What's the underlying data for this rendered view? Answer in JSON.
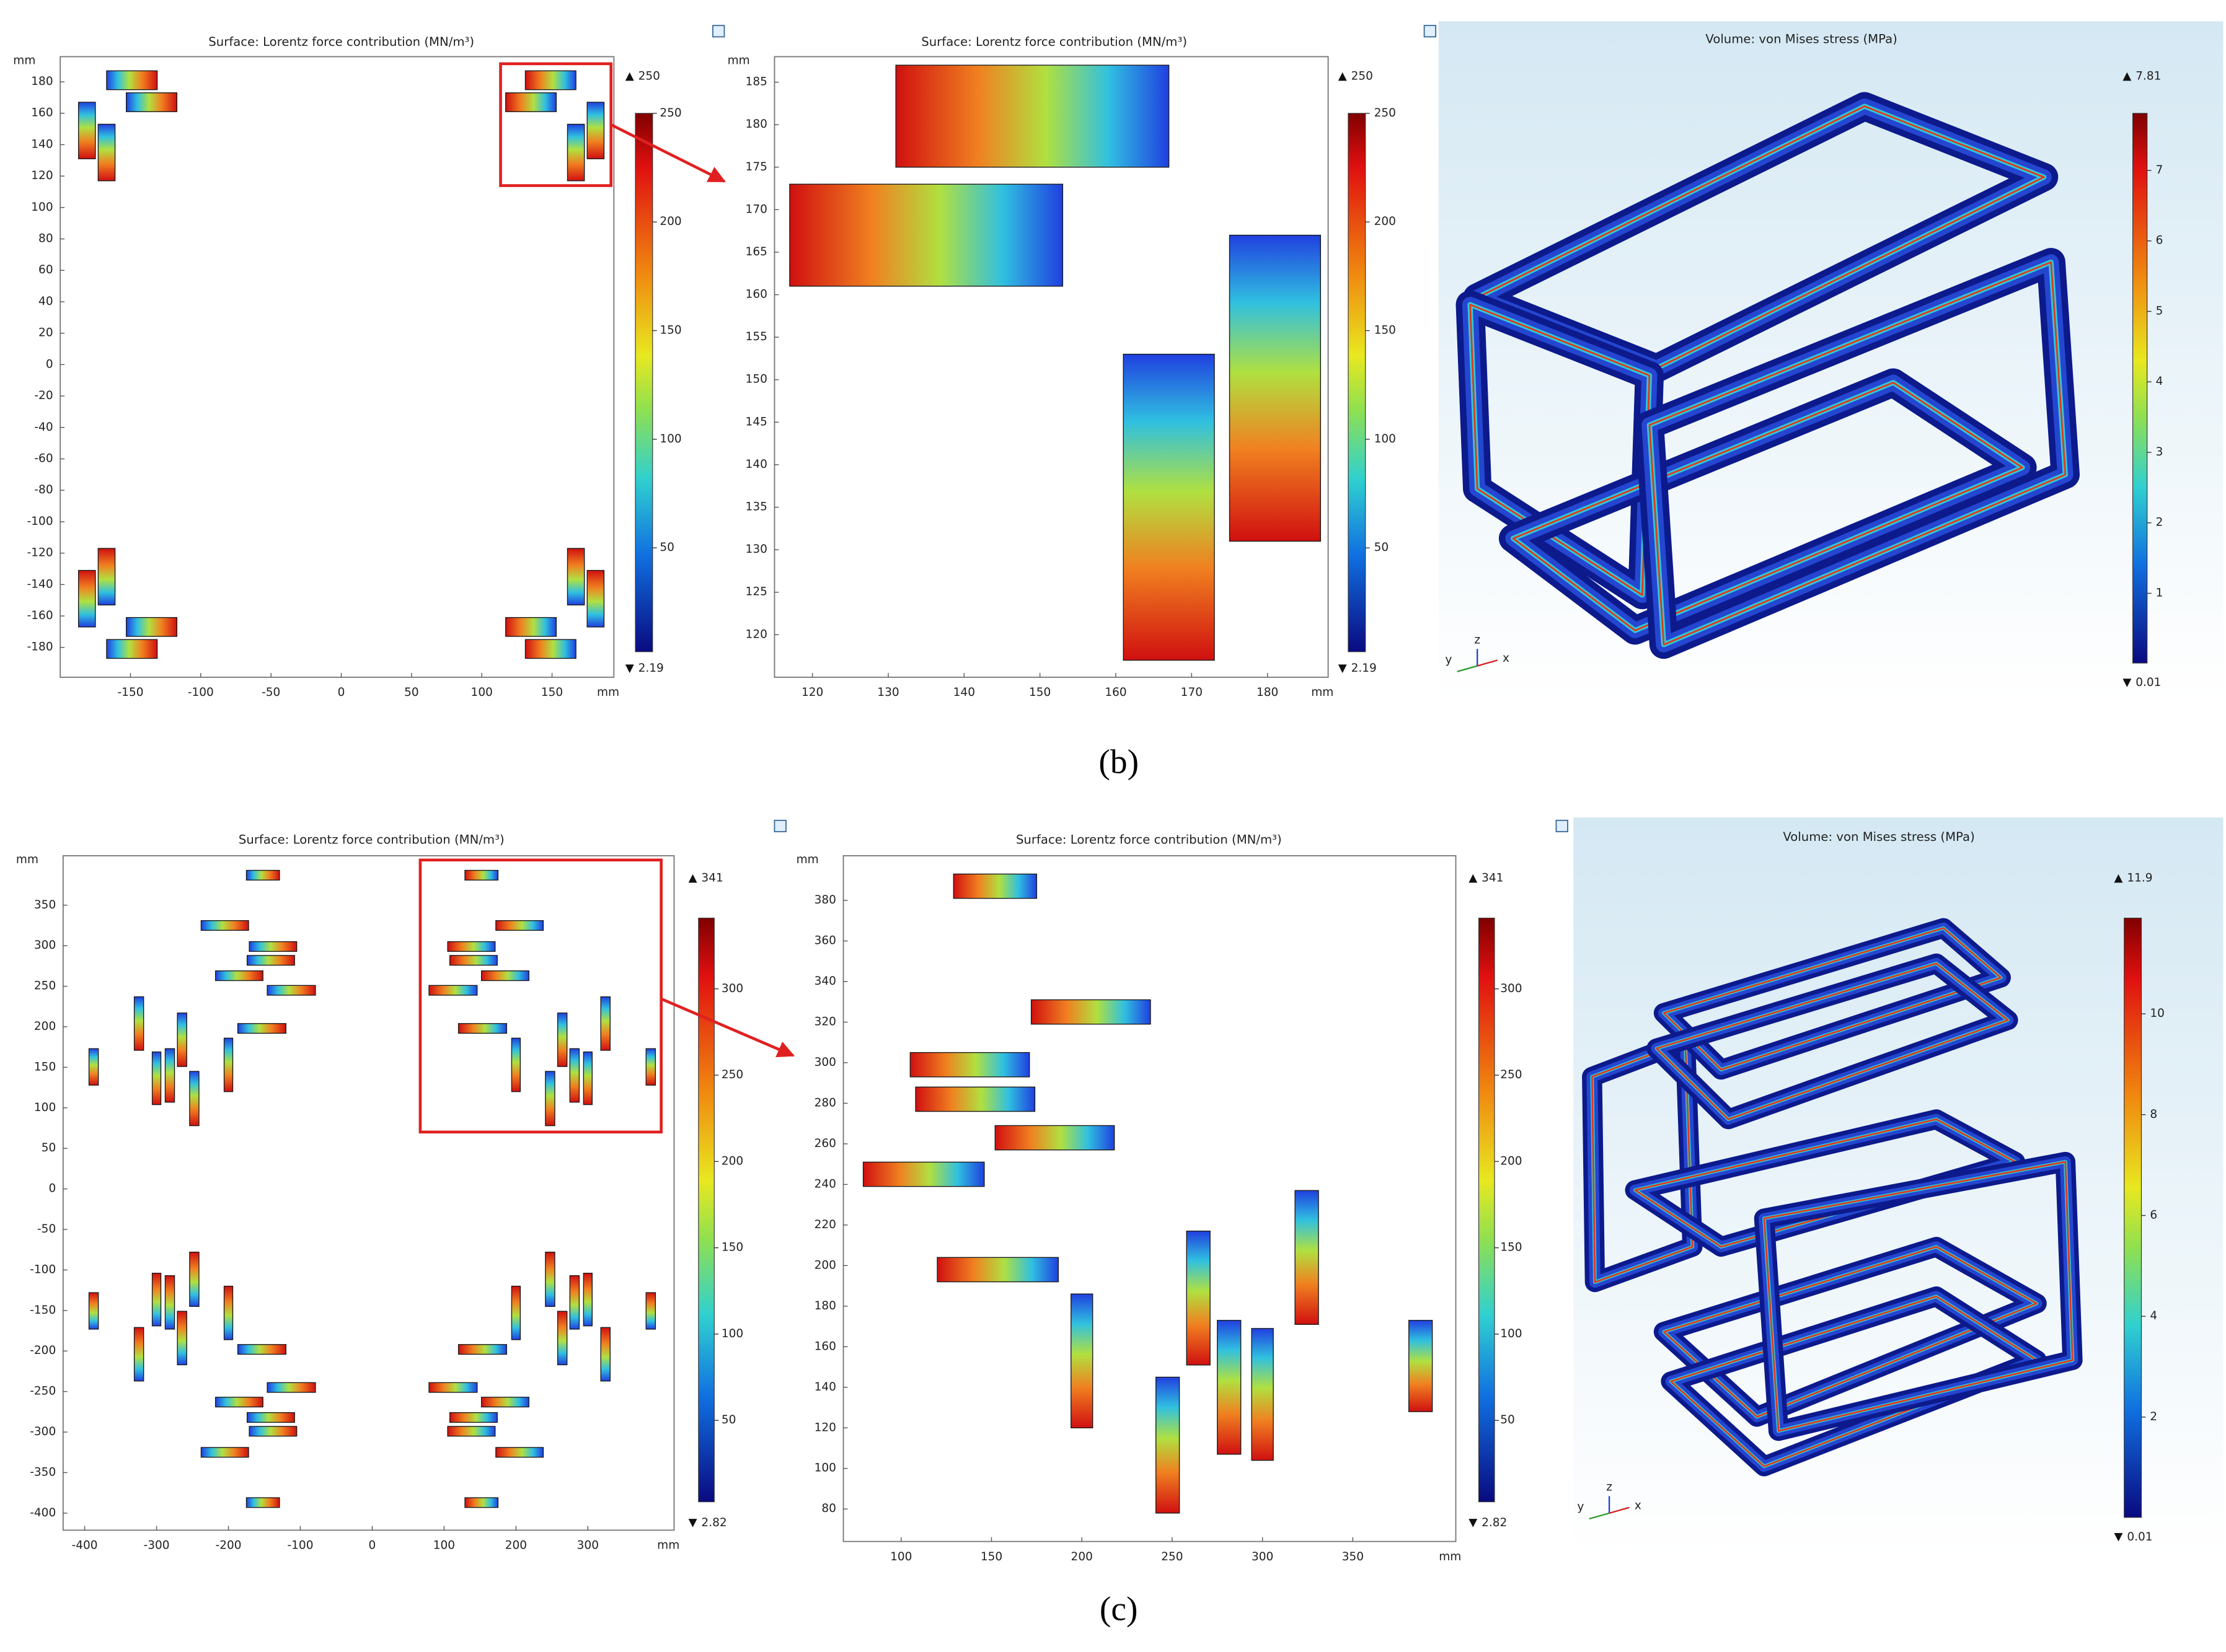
{
  "chart_data": [
    {
      "type": "field",
      "title": "Surface: Lorentz force contribution (MN/m³)",
      "x_unit": "mm",
      "y_unit": "mm",
      "xlim": [
        -200,
        194
      ],
      "ylim": [
        -199,
        196
      ],
      "xticks": [
        -150,
        -100,
        -50,
        0,
        50,
        100,
        150
      ],
      "yticks": [
        -180,
        -160,
        -140,
        -120,
        -100,
        -80,
        -60,
        -40,
        -20,
        0,
        20,
        40,
        60,
        80,
        100,
        120,
        140,
        160,
        180
      ],
      "colorbar": {
        "min": 2.19,
        "max": 250,
        "ticks": [
          50,
          100,
          150,
          200,
          250
        ]
      },
      "coils": [
        [
          131,
          175,
          167,
          187
        ],
        [
          117,
          161,
          153,
          173
        ],
        [
          161,
          117,
          173,
          153
        ],
        [
          175,
          131,
          187,
          167
        ],
        [
          -167,
          175,
          -131,
          187
        ],
        [
          -153,
          161,
          -117,
          173
        ],
        [
          -173,
          117,
          -161,
          153
        ],
        [
          -187,
          131,
          -175,
          167
        ],
        [
          -167,
          -187,
          -131,
          -175
        ],
        [
          -153,
          -173,
          -117,
          -161
        ],
        [
          -173,
          -153,
          -161,
          -117
        ],
        [
          -187,
          -167,
          -175,
          -131
        ],
        [
          131,
          -187,
          167,
          -175
        ],
        [
          117,
          -173,
          153,
          -161
        ],
        [
          161,
          -153,
          173,
          -117
        ],
        [
          175,
          -167,
          187,
          -131
        ]
      ]
    },
    {
      "type": "field",
      "title": "Surface: Lorentz force contribution (MN/m³)",
      "x_unit": "mm",
      "y_unit": "mm",
      "xlim": [
        115,
        188
      ],
      "ylim": [
        115,
        188
      ],
      "xticks": [
        120,
        130,
        140,
        150,
        160,
        170,
        180
      ],
      "yticks": [
        120,
        125,
        130,
        135,
        140,
        145,
        150,
        155,
        160,
        165,
        170,
        175,
        180,
        185
      ],
      "colorbar": {
        "min": 2.19,
        "max": 250,
        "ticks": [
          50,
          100,
          150,
          200,
          250
        ]
      },
      "coils": [
        [
          131,
          175,
          167,
          187
        ],
        [
          117,
          161,
          153,
          173
        ],
        [
          161,
          117,
          173,
          153
        ],
        [
          175,
          131,
          187,
          167
        ]
      ]
    },
    {
      "type": "render",
      "title": "Volume: von Mises stress (MPa)",
      "triad": [
        "y",
        "z",
        "x"
      ],
      "colorbar": {
        "min": 0.01,
        "max": 7.81,
        "ticks": [
          1,
          2,
          3,
          4,
          5,
          6,
          7
        ]
      }
    },
    {
      "type": "field",
      "title": "Surface: Lorentz force contribution (MN/m³)",
      "x_unit": "mm",
      "y_unit": "mm",
      "xlim": [
        -430,
        420
      ],
      "ylim": [
        -421,
        411
      ],
      "xticks": [
        -400,
        -300,
        -200,
        -100,
        0,
        100,
        200,
        300
      ],
      "yticks": [
        -400,
        -350,
        -300,
        -250,
        -200,
        -150,
        -100,
        -50,
        0,
        50,
        100,
        150,
        200,
        250,
        300,
        350
      ],
      "colorbar": {
        "min": 2.82,
        "max": 341,
        "ticks": [
          50,
          100,
          150,
          200,
          250,
          300
        ]
      },
      "coils": [
        [
          129,
          381,
          175,
          393
        ],
        [
          172,
          319,
          238,
          331
        ],
        [
          105,
          293,
          171,
          305
        ],
        [
          108,
          276,
          174,
          288
        ],
        [
          152,
          257,
          218,
          269
        ],
        [
          79,
          239,
          146,
          251
        ],
        [
          120,
          192,
          187,
          204
        ],
        [
          194,
          120,
          206,
          186
        ],
        [
          258,
          151,
          271,
          217
        ],
        [
          241,
          78,
          254,
          145
        ],
        [
          275,
          107,
          288,
          173
        ],
        [
          294,
          104,
          306,
          169
        ],
        [
          318,
          171,
          331,
          237
        ],
        [
          381,
          128,
          394,
          173
        ],
        [
          -175,
          381,
          -129,
          393
        ],
        [
          -238,
          319,
          -172,
          331
        ],
        [
          -171,
          293,
          -105,
          305
        ],
        [
          -174,
          276,
          -108,
          288
        ],
        [
          -218,
          257,
          -152,
          269
        ],
        [
          -146,
          239,
          -79,
          251
        ],
        [
          -187,
          192,
          -120,
          204
        ],
        [
          -206,
          120,
          -194,
          186
        ],
        [
          -271,
          151,
          -258,
          217
        ],
        [
          -254,
          78,
          -241,
          145
        ],
        [
          -288,
          107,
          -275,
          173
        ],
        [
          -306,
          104,
          -294,
          169
        ],
        [
          -331,
          171,
          -318,
          237
        ],
        [
          -394,
          128,
          -381,
          173
        ],
        [
          -175,
          -393,
          -129,
          -381
        ],
        [
          -238,
          -331,
          -172,
          -319
        ],
        [
          -171,
          -305,
          -105,
          -293
        ],
        [
          -174,
          -288,
          -108,
          -276
        ],
        [
          -218,
          -269,
          -152,
          -257
        ],
        [
          -146,
          -251,
          -79,
          -239
        ],
        [
          -187,
          -204,
          -120,
          -192
        ],
        [
          -206,
          -186,
          -194,
          -120
        ],
        [
          -271,
          -217,
          -258,
          -151
        ],
        [
          -254,
          -145,
          -241,
          -78
        ],
        [
          -288,
          -173,
          -275,
          -107
        ],
        [
          -306,
          -169,
          -294,
          -104
        ],
        [
          -331,
          -237,
          -318,
          -171
        ],
        [
          -394,
          -173,
          -381,
          -128
        ],
        [
          129,
          -393,
          175,
          -381
        ],
        [
          172,
          -331,
          238,
          -319
        ],
        [
          105,
          -305,
          171,
          -293
        ],
        [
          108,
          -288,
          174,
          -276
        ],
        [
          152,
          -269,
          218,
          -257
        ],
        [
          79,
          -251,
          146,
          -239
        ],
        [
          120,
          -204,
          187,
          -192
        ],
        [
          194,
          -186,
          206,
          -120
        ],
        [
          258,
          -217,
          271,
          -151
        ],
        [
          241,
          -145,
          254,
          -78
        ],
        [
          275,
          -173,
          288,
          -107
        ],
        [
          294,
          -169,
          306,
          -104
        ],
        [
          318,
          -237,
          331,
          -171
        ],
        [
          381,
          -173,
          394,
          -128
        ]
      ]
    },
    {
      "type": "field",
      "title": "Surface: Lorentz force contribution (MN/m³)",
      "x_unit": "mm",
      "y_unit": "mm",
      "xlim": [
        68,
        407
      ],
      "ylim": [
        64,
        402
      ],
      "xticks": [
        100,
        150,
        200,
        250,
        300,
        350
      ],
      "yticks": [
        80,
        100,
        120,
        140,
        160,
        180,
        200,
        220,
        240,
        260,
        280,
        300,
        320,
        340,
        360,
        380
      ],
      "colorbar": {
        "min": 2.82,
        "max": 341,
        "ticks": [
          50,
          100,
          150,
          200,
          250,
          300
        ]
      },
      "coils": [
        [
          129,
          381,
          175,
          393
        ],
        [
          172,
          319,
          238,
          331
        ],
        [
          105,
          293,
          171,
          305
        ],
        [
          108,
          276,
          174,
          288
        ],
        [
          152,
          257,
          218,
          269
        ],
        [
          79,
          239,
          146,
          251
        ],
        [
          120,
          192,
          187,
          204
        ],
        [
          194,
          120,
          206,
          186
        ],
        [
          258,
          151,
          271,
          217
        ],
        [
          241,
          78,
          254,
          145
        ],
        [
          275,
          107,
          288,
          173
        ],
        [
          294,
          104,
          306,
          169
        ],
        [
          318,
          171,
          331,
          237
        ],
        [
          381,
          128,
          394,
          173
        ]
      ]
    },
    {
      "type": "render",
      "title": "Volume: von Mises stress (MPa)",
      "triad": [
        "y",
        "z",
        "x"
      ],
      "colorbar": {
        "min": 0.01,
        "max": 11.9,
        "ticks": [
          2,
          4,
          6,
          8,
          10
        ]
      }
    }
  ],
  "captions": [
    "(b)",
    "(c)"
  ]
}
